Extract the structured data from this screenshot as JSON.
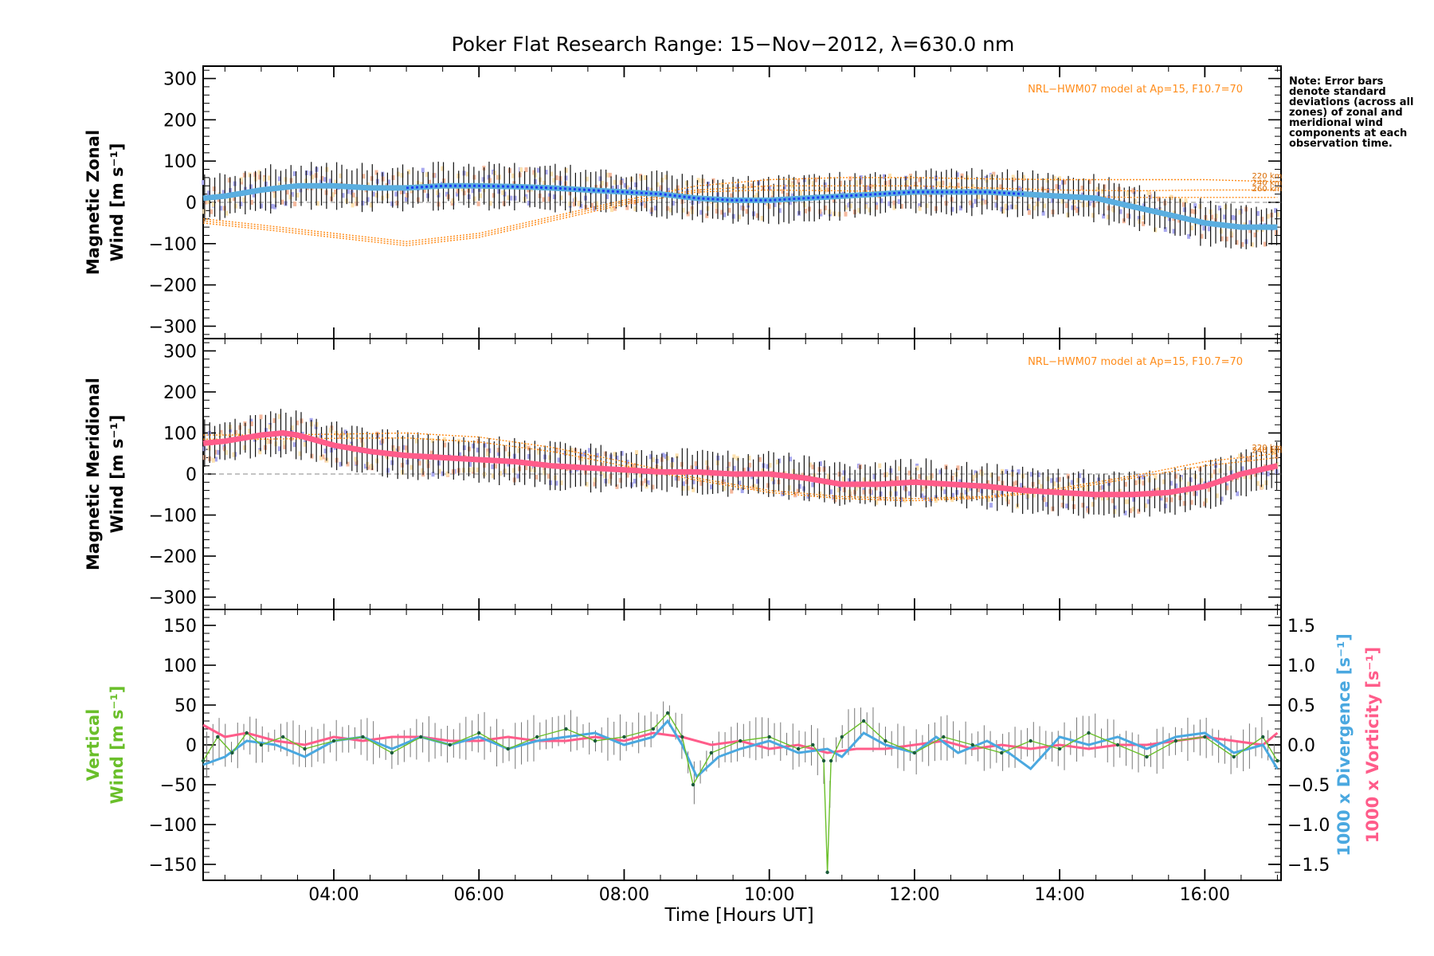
{
  "title": "Poker Flat Research Range: 15−Nov−2012, λ=630.0 nm",
  "note": "Note: Error bars denote standard deviations (across all zones) of zonal and meridional wind components at each observation time.",
  "x_axis": {
    "label": "Time [Hours UT]",
    "tick_labels": [
      "04:00",
      "06:00",
      "08:00",
      "10:00",
      "12:00",
      "14:00",
      "16:00"
    ]
  },
  "colors": {
    "zonal_fit": "#5aaee0",
    "zonal_mean": "#1a3cf0",
    "meridional_fit": "#ff5c8a",
    "zone_scatter": "#a9a9ef",
    "model": "#ff8c1a",
    "vertical": "#6abf2a",
    "divergence": "#4aa8e0",
    "vorticity": "#ff5c8a"
  },
  "chart_data": [
    {
      "type": "line",
      "panel": "zonal",
      "ylabel_line1": "Magnetic Zonal",
      "ylabel_line2": "Wind [m s⁻¹]",
      "ylim": [
        -330,
        330
      ],
      "yticks": [
        -300,
        -200,
        -100,
        0,
        100,
        200,
        300
      ],
      "tick_labels": [
        "−300",
        "−200",
        "−100",
        "0",
        "100",
        "200",
        "300"
      ],
      "model_label": "NRL−HWM07 model at Ap=15, F10.7=70",
      "model_altitudes": [
        "220 km",
        "240 km",
        "260 km"
      ],
      "series": [
        {
          "role": "fit",
          "x": [
            2.2,
            2.5,
            3.0,
            3.5,
            4.0,
            4.5,
            5.0,
            5.5,
            6.0,
            6.5,
            7.0,
            7.5,
            8.0,
            8.5,
            9.0,
            9.5,
            10.0,
            10.5,
            11.0,
            11.5,
            12.0,
            12.5,
            13.0,
            13.5,
            14.0,
            14.5,
            15.0,
            15.5,
            16.0,
            16.5,
            17.0
          ],
          "y": [
            10,
            15,
            30,
            40,
            40,
            35,
            35,
            40,
            40,
            38,
            35,
            30,
            25,
            20,
            10,
            5,
            5,
            10,
            15,
            20,
            25,
            25,
            25,
            20,
            15,
            10,
            -10,
            -30,
            -50,
            -60,
            -60
          ]
        },
        {
          "role": "model",
          "name": "220 km",
          "x": [
            2.2,
            3.0,
            4.0,
            5.0,
            6.0,
            7.0,
            8.0,
            9.0,
            10.0,
            11.0,
            12.0,
            13.0,
            14.0,
            15.0,
            16.0,
            17.0
          ],
          "y": [
            -40,
            -55,
            -75,
            -95,
            -75,
            -35,
            5,
            40,
            55,
            60,
            60,
            57,
            55,
            55,
            55,
            50
          ]
        },
        {
          "role": "model",
          "name": "240 km",
          "x": [
            2.2,
            3.0,
            4.0,
            5.0,
            6.0,
            7.0,
            8.0,
            9.0,
            10.0,
            11.0,
            12.0,
            13.0,
            14.0,
            15.0,
            16.0,
            17.0
          ],
          "y": [
            -45,
            -60,
            -80,
            -100,
            -80,
            -40,
            0,
            30,
            40,
            40,
            40,
            35,
            30,
            28,
            30,
            30
          ]
        },
        {
          "role": "model",
          "name": "260 km",
          "x": [
            2.2,
            3.0,
            4.0,
            5.0,
            6.0,
            7.0,
            8.0,
            9.0,
            10.0,
            11.0,
            12.0,
            13.0,
            14.0,
            15.0,
            16.0,
            17.0
          ],
          "y": [
            -50,
            -65,
            -85,
            -105,
            -85,
            -45,
            -5,
            25,
            30,
            28,
            25,
            20,
            15,
            12,
            12,
            12
          ]
        }
      ]
    },
    {
      "type": "line",
      "panel": "meridional",
      "ylabel_line1": "Magnetic Meridional",
      "ylabel_line2": "Wind [m s⁻¹]",
      "ylim": [
        -330,
        330
      ],
      "yticks": [
        -300,
        -200,
        -100,
        0,
        100,
        200,
        300
      ],
      "tick_labels": [
        "−300",
        "−200",
        "−100",
        "0",
        "100",
        "200",
        "300"
      ],
      "model_label": "NRL−HWM07 model at Ap=15, F10.7=70",
      "model_altitudes": [
        "220 km",
        "240 km"
      ],
      "series": [
        {
          "role": "fit",
          "x": [
            2.2,
            2.5,
            3.0,
            3.3,
            3.5,
            4.0,
            4.5,
            5.0,
            5.5,
            6.0,
            6.5,
            7.0,
            7.5,
            8.0,
            8.5,
            9.0,
            9.5,
            10.0,
            10.5,
            11.0,
            11.5,
            12.0,
            12.5,
            13.0,
            13.5,
            14.0,
            14.5,
            15.0,
            15.5,
            16.0,
            16.5,
            17.0
          ],
          "y": [
            75,
            80,
            95,
            100,
            95,
            70,
            55,
            45,
            40,
            35,
            30,
            20,
            15,
            10,
            5,
            5,
            0,
            0,
            -10,
            -25,
            -25,
            -20,
            -25,
            -30,
            -40,
            -45,
            -50,
            -50,
            -45,
            -30,
            0,
            20
          ]
        },
        {
          "role": "model",
          "name": "220 km",
          "x": [
            2.2,
            3.0,
            4.0,
            5.0,
            6.0,
            7.0,
            8.0,
            9.0,
            10.0,
            11.0,
            12.0,
            13.0,
            14.0,
            15.0,
            16.0,
            17.0
          ],
          "y": [
            95,
            95,
            97,
            100,
            90,
            65,
            30,
            -10,
            -40,
            -55,
            -60,
            -55,
            -35,
            -5,
            30,
            50
          ]
        },
        {
          "role": "model",
          "name": "240 km",
          "x": [
            2.2,
            3.0,
            4.0,
            5.0,
            6.0,
            7.0,
            8.0,
            9.0,
            10.0,
            11.0,
            12.0,
            13.0,
            14.0,
            15.0,
            16.0,
            17.0
          ],
          "y": [
            85,
            85,
            87,
            88,
            78,
            55,
            20,
            -15,
            -45,
            -60,
            -65,
            -58,
            -40,
            -10,
            20,
            40
          ]
        }
      ]
    },
    {
      "type": "line",
      "panel": "vertical",
      "ylabel_line1": "Vertical",
      "ylabel_line2": "Wind [m s⁻¹]",
      "ylim": [
        -170,
        170
      ],
      "yticks": [
        -150,
        -100,
        -50,
        0,
        50,
        100,
        150
      ],
      "tick_labels": [
        "−150",
        "−100",
        "−50",
        "0",
        "50",
        "100",
        "150"
      ],
      "y2lim": [
        -1.7,
        1.7
      ],
      "y2ticks": [
        -1.5,
        -1.0,
        -0.5,
        0.0,
        0.5,
        1.0,
        1.5
      ],
      "y2_tick_labels": [
        "−1.5",
        "−1.0",
        "−0.5",
        "0.0",
        "0.5",
        "1.0",
        "1.5"
      ],
      "y2label_divergence": "1000 x Divergence [s⁻¹]",
      "y2label_vorticity": "1000 x Vorticity [s⁻¹]",
      "series": [
        {
          "role": "vertical",
          "x": [
            2.2,
            2.4,
            2.6,
            2.8,
            3.0,
            3.3,
            3.6,
            4.0,
            4.4,
            4.8,
            5.2,
            5.6,
            6.0,
            6.4,
            6.8,
            7.2,
            7.6,
            8.0,
            8.4,
            8.6,
            8.8,
            8.95,
            9.2,
            9.6,
            10.0,
            10.4,
            10.6,
            10.75,
            10.8,
            10.85,
            11.0,
            11.3,
            11.6,
            12.0,
            12.4,
            12.8,
            13.2,
            13.6,
            14.0,
            14.4,
            14.8,
            15.2,
            15.6,
            16.0,
            16.4,
            16.8,
            17.0
          ],
          "y": [
            -20,
            10,
            -10,
            15,
            0,
            10,
            -5,
            5,
            10,
            -10,
            10,
            0,
            15,
            -5,
            10,
            20,
            5,
            10,
            20,
            40,
            10,
            -50,
            -10,
            5,
            10,
            -5,
            0,
            -20,
            -160,
            -20,
            10,
            30,
            5,
            -10,
            10,
            0,
            -10,
            5,
            -5,
            15,
            0,
            -15,
            5,
            10,
            -15,
            10,
            -20
          ]
        },
        {
          "role": "divergence",
          "x": [
            2.2,
            2.5,
            2.8,
            3.2,
            3.6,
            4.0,
            4.4,
            4.8,
            5.2,
            5.6,
            6.0,
            6.4,
            6.8,
            7.2,
            7.6,
            8.0,
            8.4,
            8.6,
            8.8,
            9.0,
            9.3,
            9.6,
            10.0,
            10.4,
            10.8,
            11.0,
            11.3,
            11.6,
            12.0,
            12.3,
            12.6,
            13.0,
            13.3,
            13.6,
            14.0,
            14.4,
            14.8,
            15.2,
            15.6,
            16.0,
            16.4,
            16.8,
            17.0
          ],
          "y": [
            -0.25,
            -0.15,
            0.05,
            0.0,
            -0.15,
            0.05,
            0.1,
            -0.05,
            0.1,
            0.0,
            0.1,
            -0.05,
            0.05,
            0.1,
            0.15,
            0.0,
            0.1,
            0.3,
            0.0,
            -0.4,
            -0.15,
            -0.05,
            0.05,
            -0.1,
            -0.05,
            -0.15,
            0.15,
            0.0,
            -0.1,
            0.1,
            -0.1,
            0.05,
            -0.1,
            -0.3,
            0.1,
            0.0,
            0.1,
            -0.05,
            0.1,
            0.15,
            -0.1,
            0.0,
            -0.3
          ]
        },
        {
          "role": "vorticity",
          "x": [
            2.2,
            2.5,
            2.8,
            3.2,
            3.6,
            4.0,
            4.4,
            4.8,
            5.2,
            5.6,
            6.0,
            6.4,
            6.8,
            7.2,
            7.6,
            8.0,
            8.4,
            8.8,
            9.2,
            9.6,
            10.0,
            10.4,
            10.8,
            11.2,
            11.6,
            12.0,
            12.4,
            12.8,
            13.2,
            13.6,
            14.0,
            14.4,
            14.8,
            15.2,
            15.6,
            16.0,
            16.4,
            16.8,
            17.0
          ],
          "y": [
            0.25,
            0.1,
            0.15,
            0.05,
            0.0,
            0.1,
            0.05,
            0.1,
            0.1,
            0.05,
            0.05,
            0.1,
            0.05,
            0.05,
            0.1,
            0.05,
            0.15,
            0.1,
            0.0,
            0.05,
            -0.05,
            0.0,
            -0.1,
            -0.05,
            -0.05,
            0.0,
            0.05,
            -0.05,
            0.0,
            -0.05,
            0.0,
            -0.05,
            0.0,
            0.0,
            0.05,
            0.1,
            0.05,
            0.0,
            0.15
          ]
        }
      ]
    }
  ]
}
